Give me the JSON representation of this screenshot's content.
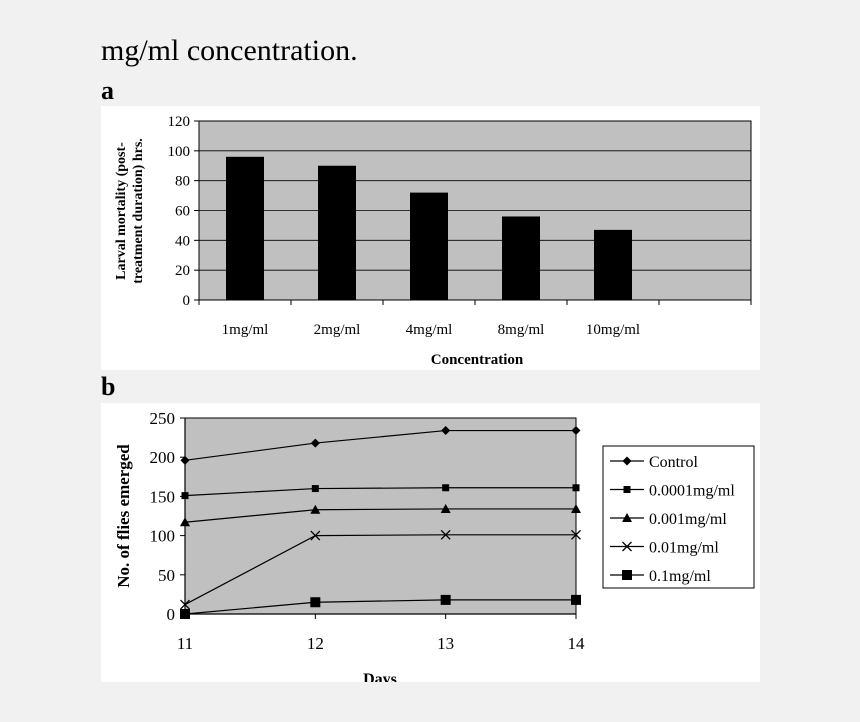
{
  "caption": "mg/ml concentration.",
  "panel_labels": [
    "a",
    "b"
  ],
  "colors": {
    "plot_bg": "#c0c0c0",
    "bar": "#000000",
    "page_bg": "#f1f1f1",
    "panel_bg": "#ffffff"
  },
  "chart_data": [
    {
      "type": "bar",
      "title": "",
      "categories": [
        "1mg/ml",
        "2mg/ml",
        "4mg/ml",
        "8mg/ml",
        "10mg/ml"
      ],
      "values": [
        96,
        90,
        72,
        56,
        47
      ],
      "xlabel": "Concentration",
      "ylabel_lines": [
        "Larval mortality (post-",
        "treatment duration) hrs."
      ],
      "ylim": [
        0,
        120
      ],
      "yticks": [
        0,
        20,
        40,
        60,
        80,
        100,
        120
      ],
      "grid": true
    },
    {
      "type": "line",
      "title": "",
      "x": [
        11,
        12,
        13,
        14
      ],
      "xlabel": "Days",
      "ylabel": "No. of flies emerged",
      "ylim": [
        0,
        250
      ],
      "yticks": [
        0,
        50,
        100,
        150,
        200,
        250
      ],
      "grid": false,
      "legend_position": "right",
      "series": [
        {
          "name": "Control",
          "marker": "diamond",
          "values": [
            196,
            218,
            234,
            234
          ]
        },
        {
          "name": "0.0001mg/ml",
          "marker": "square",
          "values": [
            151,
            160,
            161,
            161
          ]
        },
        {
          "name": "0.001mg/ml",
          "marker": "triangle",
          "values": [
            117,
            133,
            134,
            134
          ]
        },
        {
          "name": "0.01mg/ml",
          "marker": "x",
          "values": [
            12,
            100,
            101,
            101
          ]
        },
        {
          "name": "0.1mg/ml",
          "marker": "bigsquare",
          "values": [
            0,
            15,
            18,
            18
          ]
        }
      ]
    }
  ]
}
